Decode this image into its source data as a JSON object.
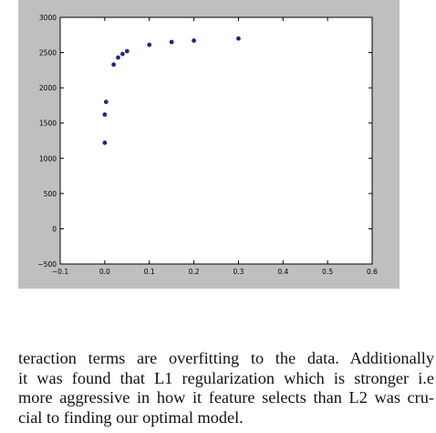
{
  "chart_data": {
    "type": "scatter",
    "title": "",
    "xlabel": "",
    "ylabel": "",
    "xlim": [
      -0.1,
      0.6
    ],
    "ylim": [
      -500,
      3000
    ],
    "xticks": [
      "-0.1",
      "0.0",
      "0.1",
      "0.2",
      "0.3",
      "0.4",
      "0.5",
      "0.6"
    ],
    "yticks": [
      "-500",
      "0",
      "500",
      "1000",
      "1500",
      "2000",
      "2500",
      "3000"
    ],
    "grid": false,
    "marker_color": "#1f2a7a",
    "panel_color": "#bfbfbf",
    "points": [
      {
        "x": 0.0,
        "y": 1220
      },
      {
        "x": 0.0,
        "y": 1620
      },
      {
        "x": 0.003,
        "y": 1800
      },
      {
        "x": 0.02,
        "y": 2330
      },
      {
        "x": 0.03,
        "y": 2430
      },
      {
        "x": 0.04,
        "y": 2480
      },
      {
        "x": 0.05,
        "y": 2520
      },
      {
        "x": 0.1,
        "y": 2610
      },
      {
        "x": 0.15,
        "y": 2650
      },
      {
        "x": 0.2,
        "y": 2670
      },
      {
        "x": 0.3,
        "y": 2700
      }
    ]
  },
  "paragraph": {
    "lines": [
      "teraction terms are overfitting to the data. Additionally",
      "it was found that L1 regularization which is stronger i.e",
      "more aggressive in how it feature selects than L2 was cru-",
      "cial to finding our optimal model."
    ]
  }
}
